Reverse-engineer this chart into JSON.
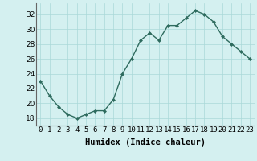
{
  "x": [
    0,
    1,
    2,
    3,
    4,
    5,
    6,
    7,
    8,
    9,
    10,
    11,
    12,
    13,
    14,
    15,
    16,
    17,
    18,
    19,
    20,
    21,
    22,
    23
  ],
  "y": [
    23,
    21,
    19.5,
    18.5,
    18,
    18.5,
    19,
    19,
    20.5,
    24,
    26,
    28.5,
    29.5,
    28.5,
    30.5,
    30.5,
    31.5,
    32.5,
    32,
    31,
    29,
    28,
    27,
    26
  ],
  "line_color": "#2e6b5e",
  "marker_color": "#2e6b5e",
  "bg_color": "#d4f0f0",
  "grid_color": "#aad8d8",
  "xlabel": "Humidex (Indice chaleur)",
  "ylim": [
    17,
    33.5
  ],
  "yticks": [
    18,
    20,
    22,
    24,
    26,
    28,
    30,
    32
  ],
  "xlim": [
    -0.5,
    23.5
  ],
  "xtick_labels": [
    "0",
    "1",
    "2",
    "3",
    "4",
    "5",
    "6",
    "7",
    "8",
    "9",
    "10",
    "11",
    "12",
    "13",
    "14",
    "15",
    "16",
    "17",
    "18",
    "19",
    "20",
    "21",
    "22",
    "23"
  ],
  "title_fontsize": 7,
  "label_fontsize": 7.5,
  "tick_fontsize": 6.5
}
